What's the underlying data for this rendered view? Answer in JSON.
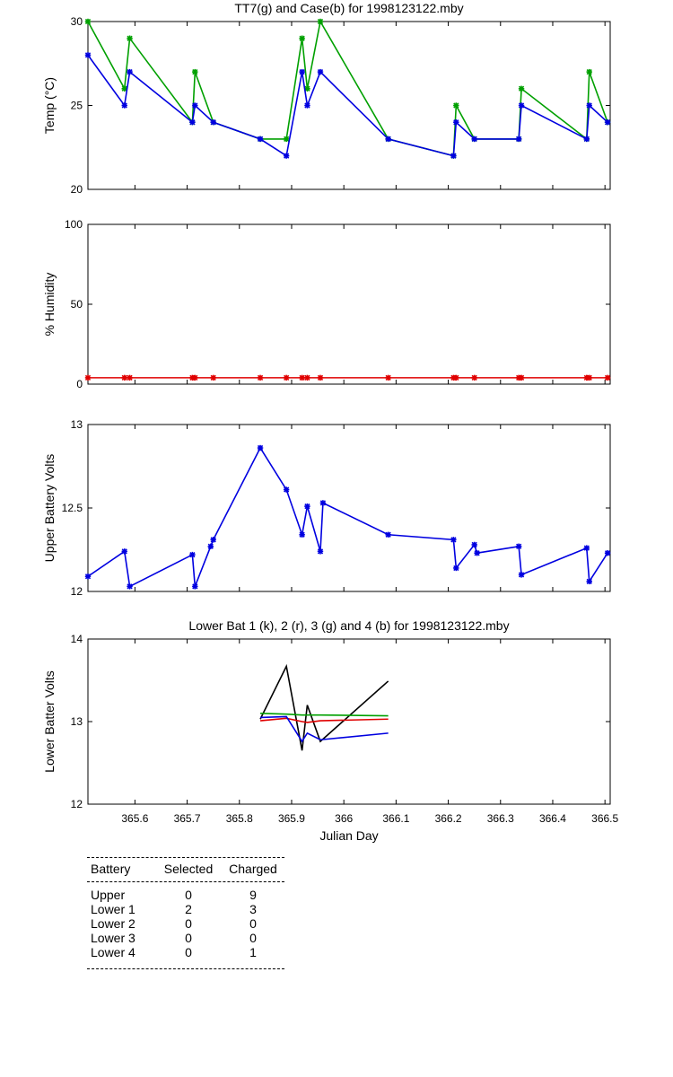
{
  "chart_data": [
    {
      "type": "line",
      "title": "TT7(g) and Case(b) for 1998123122.mby",
      "xlabel": "",
      "ylabel": "Temp  (°C)",
      "xlim": [
        365.51,
        366.51
      ],
      "ylim": [
        20,
        30
      ],
      "yticks": [
        "20",
        "25",
        "30"
      ],
      "series": [
        {
          "color": "#00a000",
          "x": [
            365.51,
            365.58,
            365.59,
            365.71,
            365.715,
            365.75,
            365.84,
            365.89,
            365.92,
            365.93,
            365.955,
            366.085,
            366.21,
            366.215,
            366.25,
            366.335,
            366.34,
            366.465,
            366.47,
            366.505
          ],
          "y": [
            30,
            26,
            29,
            24,
            27,
            24,
            23,
            23,
            29,
            26,
            30,
            23,
            22,
            25,
            23,
            23,
            26,
            23,
            27,
            24
          ]
        },
        {
          "color": "#0000e0",
          "x": [
            365.51,
            365.58,
            365.59,
            365.71,
            365.715,
            365.75,
            365.84,
            365.89,
            365.92,
            365.93,
            365.955,
            366.085,
            366.21,
            366.215,
            366.25,
            366.335,
            366.34,
            366.465,
            366.47,
            366.505
          ],
          "y": [
            28,
            25,
            27,
            24,
            25,
            24,
            23,
            22,
            27,
            25,
            27,
            23,
            22,
            24,
            23,
            23,
            25,
            23,
            25,
            24
          ]
        }
      ]
    },
    {
      "type": "line",
      "title": "",
      "xlabel": "",
      "ylabel": "% Humidity",
      "xlim": [
        365.51,
        366.51
      ],
      "ylim": [
        0,
        100
      ],
      "yticks": [
        "0",
        "50",
        "100"
      ],
      "series": [
        {
          "color": "#e00000",
          "x": [
            365.51,
            365.58,
            365.59,
            365.71,
            365.715,
            365.75,
            365.84,
            365.89,
            365.92,
            365.93,
            365.955,
            366.085,
            366.21,
            366.215,
            366.25,
            366.335,
            366.34,
            366.465,
            366.47,
            366.505
          ],
          "y": [
            4,
            4,
            4,
            4,
            4,
            4,
            4,
            4,
            4,
            4,
            4,
            4,
            4,
            4,
            4,
            4,
            4,
            4,
            4,
            4
          ]
        }
      ]
    },
    {
      "type": "line",
      "title": "",
      "xlabel": "",
      "ylabel": "Upper Battery Volts",
      "xlim": [
        365.51,
        366.51
      ],
      "ylim": [
        12,
        13
      ],
      "yticks": [
        "12",
        "12.5",
        "13"
      ],
      "series": [
        {
          "color": "#0000e0",
          "x": [
            365.51,
            365.58,
            365.59,
            365.71,
            365.715,
            365.745,
            365.75,
            365.84,
            365.89,
            365.92,
            365.93,
            365.955,
            365.96,
            366.085,
            366.21,
            366.215,
            366.25,
            366.255,
            366.335,
            366.34,
            366.465,
            366.47,
            366.505
          ],
          "y": [
            12.09,
            12.24,
            12.03,
            12.22,
            12.03,
            12.27,
            12.31,
            12.86,
            12.61,
            12.34,
            12.51,
            12.24,
            12.53,
            12.34,
            12.31,
            12.14,
            12.28,
            12.23,
            12.27,
            12.1,
            12.26,
            12.06,
            12.23
          ]
        }
      ]
    },
    {
      "type": "line",
      "title": "Lower Bat 1 (k), 2 (r), 3 (g) and 4 (b) for 1998123122.mby",
      "xlabel": "Julian Day",
      "ylabel": "Lower Batter Volts",
      "xlim": [
        365.51,
        366.51
      ],
      "ylim": [
        12,
        14
      ],
      "yticks": [
        "12",
        "13",
        "14"
      ],
      "xticks": [
        365.6,
        365.7,
        365.8,
        365.9,
        366.0,
        366.1,
        366.2,
        366.3,
        366.4,
        366.5
      ],
      "xticklabels": [
        "365.6",
        "365.7",
        "365.8",
        "365.9",
        "366",
        "366.1",
        "366.2",
        "366.3",
        "366.4",
        "366.5"
      ],
      "series": [
        {
          "color": "#000000",
          "x": [
            365.84,
            365.89,
            365.92,
            365.93,
            365.955,
            366.085
          ],
          "y": [
            13.03,
            13.67,
            12.65,
            13.2,
            12.76,
            13.49
          ]
        },
        {
          "color": "#e00000",
          "x": [
            365.84,
            365.89,
            365.92,
            365.93,
            365.955,
            366.085
          ],
          "y": [
            13.01,
            13.04,
            13.0,
            12.99,
            13.01,
            13.03
          ]
        },
        {
          "color": "#00a000",
          "x": [
            365.84,
            365.89,
            365.92,
            365.93,
            365.955,
            366.085
          ],
          "y": [
            13.1,
            13.09,
            13.08,
            13.08,
            13.08,
            13.07
          ]
        },
        {
          "color": "#0000e0",
          "x": [
            365.84,
            365.89,
            365.92,
            365.93,
            365.955,
            366.085
          ],
          "y": [
            13.05,
            13.06,
            12.76,
            12.86,
            12.78,
            12.86
          ]
        }
      ]
    }
  ],
  "summary": {
    "headers": [
      "Battery",
      "Selected",
      "Charged"
    ],
    "rows": [
      [
        "Upper",
        "0",
        "9"
      ],
      [
        "Lower 1",
        "2",
        "3"
      ],
      [
        "Lower 2",
        "0",
        "0"
      ],
      [
        "Lower 3",
        "0",
        "0"
      ],
      [
        "Lower 4",
        "0",
        "1"
      ]
    ]
  }
}
